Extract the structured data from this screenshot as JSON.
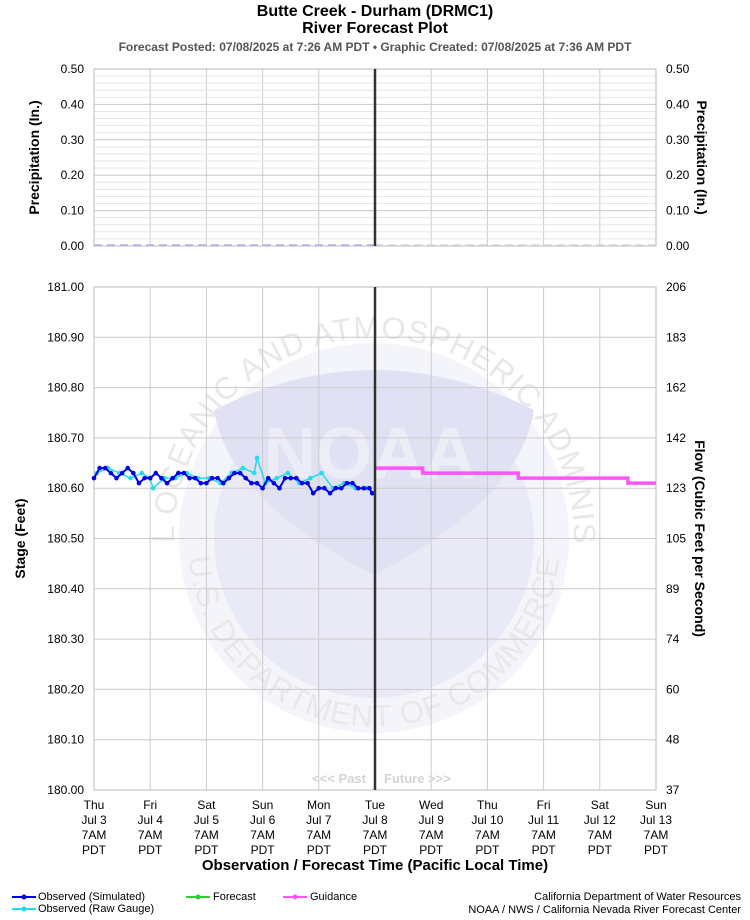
{
  "header": {
    "title": "Butte Creek - Durham (DRMC1)",
    "subtitle": "River Forecast Plot",
    "posted": "Forecast Posted: 07/08/2025 at 7:26 AM PDT  •  Graphic Created: 07/08/2025 at 7:36 AM PDT"
  },
  "chart_data": [
    {
      "type": "bar",
      "ylabel": "Precipitation (In.)",
      "ylabel_right": "Precipitation (In.)",
      "ylim": [
        0,
        0.5
      ],
      "y_ticks": [
        "0.50",
        "0.40",
        "0.30",
        "0.20",
        "0.10",
        "0.00"
      ],
      "y_tick_values": [
        0.5,
        0.4,
        0.3,
        0.2,
        0.1,
        0.0
      ],
      "x": [],
      "values": [],
      "observed_dash_level": 0.0,
      "grid": true
    },
    {
      "type": "line",
      "ylabel": "Stage (Feet)",
      "ylabel_right": "Flow (Cubic Feet per Second)",
      "xlabel": "Observation / Forecast Time (Pacific Local Time)",
      "ylim": [
        180.0,
        181.0
      ],
      "y_ticks": [
        "181.00",
        "180.90",
        "180.80",
        "180.70",
        "180.60",
        "180.50",
        "180.40",
        "180.30",
        "180.20",
        "180.10",
        "180.00"
      ],
      "y_tick_values": [
        181.0,
        180.9,
        180.8,
        180.7,
        180.6,
        180.5,
        180.4,
        180.3,
        180.2,
        180.1,
        180.0
      ],
      "y_ticks_right": [
        "206",
        "183",
        "162",
        "142",
        "123",
        "105",
        "89",
        "74",
        "60",
        "48",
        "37"
      ],
      "x_ticks": [
        [
          "Thu",
          "Jul 3",
          "7AM",
          "PDT"
        ],
        [
          "Fri",
          "Jul 4",
          "7AM",
          "PDT"
        ],
        [
          "Sat",
          "Jul 5",
          "7AM",
          "PDT"
        ],
        [
          "Sun",
          "Jul 6",
          "7AM",
          "PDT"
        ],
        [
          "Mon",
          "Jul 7",
          "7AM",
          "PDT"
        ],
        [
          "Tue",
          "Jul 8",
          "7AM",
          "PDT"
        ],
        [
          "Wed",
          "Jul 9",
          "7AM",
          "PDT"
        ],
        [
          "Thu",
          "Jul 10",
          "7AM",
          "PDT"
        ],
        [
          "Fri",
          "Jul 11",
          "7AM",
          "PDT"
        ],
        [
          "Sat",
          "Jul 12",
          "7AM",
          "PDT"
        ],
        [
          "Sun",
          "Jul 13",
          "7AM",
          "PDT"
        ]
      ],
      "x_range_days": [
        0,
        10
      ],
      "now_day": 5,
      "past_label": "<<< Past",
      "future_label": "Future >>>",
      "grid": true,
      "series": [
        {
          "name": "Observed (Simulated)",
          "color": "#0000ee",
          "x": [
            0,
            0.1,
            0.2,
            0.3,
            0.4,
            0.5,
            0.6,
            0.7,
            0.8,
            0.9,
            1.0,
            1.1,
            1.2,
            1.3,
            1.4,
            1.5,
            1.6,
            1.7,
            1.8,
            1.9,
            2.0,
            2.1,
            2.2,
            2.3,
            2.4,
            2.5,
            2.6,
            2.7,
            2.8,
            2.9,
            3.0,
            3.1,
            3.2,
            3.3,
            3.4,
            3.5,
            3.6,
            3.7,
            3.8,
            3.9,
            4.0,
            4.1,
            4.2,
            4.3,
            4.4,
            4.5,
            4.6,
            4.7,
            4.8,
            4.9,
            4.95
          ],
          "values": [
            180.62,
            180.64,
            180.64,
            180.63,
            180.62,
            180.63,
            180.64,
            180.63,
            180.61,
            180.62,
            180.62,
            180.63,
            180.62,
            180.61,
            180.62,
            180.63,
            180.63,
            180.62,
            180.62,
            180.61,
            180.61,
            180.62,
            180.62,
            180.61,
            180.62,
            180.63,
            180.63,
            180.62,
            180.61,
            180.61,
            180.6,
            180.62,
            180.61,
            180.6,
            180.62,
            180.62,
            180.62,
            180.61,
            180.61,
            180.59,
            180.6,
            180.6,
            180.59,
            180.6,
            180.6,
            180.61,
            180.61,
            180.6,
            180.6,
            180.6,
            180.59
          ]
        },
        {
          "name": "Observed (Raw Gauge)",
          "color": "#22ddee",
          "x": [
            0.05,
            0.25,
            0.45,
            0.65,
            0.85,
            1.0,
            1.05,
            1.25,
            1.45,
            1.65,
            1.85,
            2.05,
            2.25,
            2.45,
            2.65,
            2.85,
            2.9,
            3.05,
            3.25,
            3.45,
            3.65,
            3.85,
            4.05,
            4.25,
            4.45,
            4.65,
            4.85
          ],
          "values": [
            180.63,
            180.64,
            180.63,
            180.62,
            180.63,
            180.62,
            180.6,
            180.62,
            180.62,
            180.63,
            180.62,
            180.62,
            180.61,
            180.63,
            180.64,
            180.63,
            180.66,
            180.61,
            180.62,
            180.63,
            180.61,
            180.62,
            180.63,
            180.6,
            180.61,
            180.6,
            180.6
          ]
        },
        {
          "name": "Forecast",
          "color": "#33cc33",
          "x": [],
          "values": []
        },
        {
          "name": "Guidance",
          "color": "#ff55ff",
          "x": [
            5.0,
            5.85,
            5.85,
            7.55,
            7.55,
            9.5,
            9.5,
            10.0
          ],
          "values": [
            180.64,
            180.64,
            180.63,
            180.63,
            180.62,
            180.62,
            180.61,
            180.61
          ]
        }
      ]
    }
  ],
  "legend": {
    "observed_simulated": "Observed (Simulated)",
    "observed_raw": "Observed (Raw Gauge)",
    "forecast": "Forecast",
    "guidance": "Guidance"
  },
  "credits": {
    "line1": "California Department of Water Resources",
    "line2": "NOAA / NWS / California Nevada River Forecast Center"
  },
  "watermark": {
    "logo_text": "NOAA",
    "ring_text_top": "NATIONAL OCEANIC AND ATMOSPHERIC ADMINISTRATION",
    "ring_text_bottom": "U.S. DEPARTMENT OF COMMERCE"
  },
  "colors": {
    "grid": "#cccccc",
    "now_line": "#333333",
    "precip_dash": "#b0b0e8"
  }
}
